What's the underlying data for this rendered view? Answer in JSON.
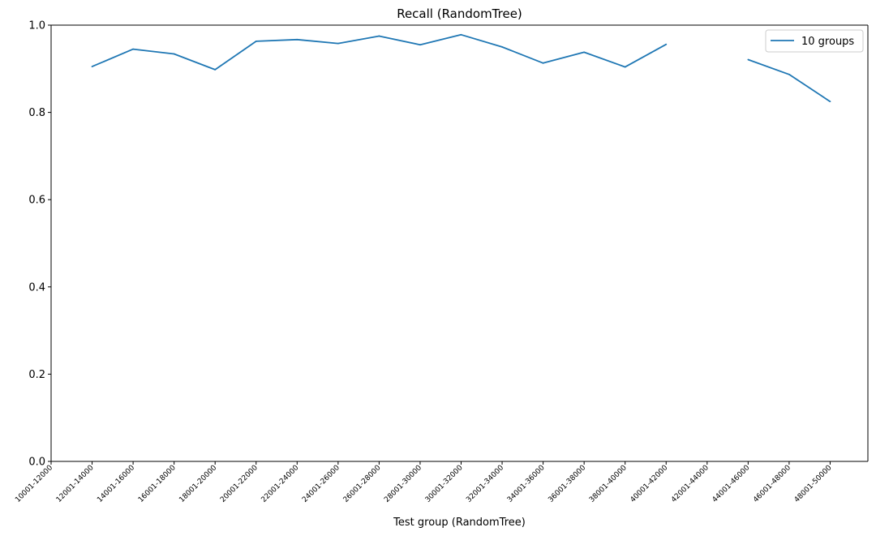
{
  "chart_data": {
    "type": "line",
    "title": "Recall (RandomTree)",
    "xlabel": "Test group (RandomTree)",
    "ylabel": "",
    "ylim": [
      0.0,
      1.0
    ],
    "yticks": [
      "0.0",
      "0.2",
      "0.4",
      "0.6",
      "0.8",
      "1.0"
    ],
    "grid": false,
    "legend_position": "upper-right",
    "categories": [
      "10001-12000",
      "12001-14000",
      "14001-16000",
      "16001-18000",
      "18001-20000",
      "20001-22000",
      "22001-24000",
      "24001-26000",
      "26001-28000",
      "28001-30000",
      "30001-32000",
      "32001-34000",
      "34001-36000",
      "36001-38000",
      "38001-40000",
      "40001-42000",
      "42001-44000",
      "44001-46000",
      "46001-48000",
      "48001-50000"
    ],
    "series": [
      {
        "name": "10 groups",
        "color": "#1f77b4",
        "values": [
          null,
          0.905,
          0.945,
          0.934,
          0.898,
          0.963,
          0.967,
          0.958,
          0.975,
          0.955,
          0.978,
          0.95,
          0.913,
          0.938,
          0.904,
          0.956,
          null,
          0.921,
          0.887,
          0.825
        ]
      }
    ]
  }
}
